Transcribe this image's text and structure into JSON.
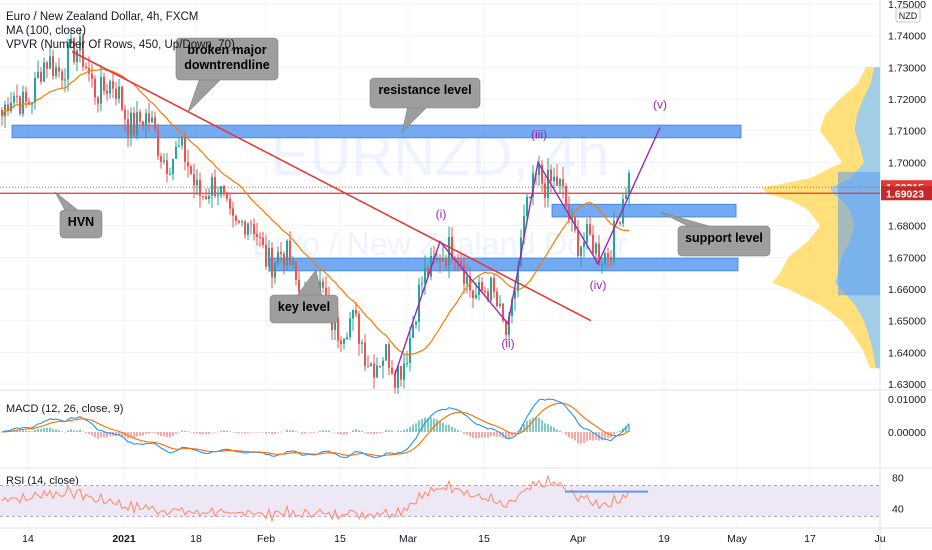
{
  "header": {
    "symbol_line": "Euro / New Zealand Dollar, 4h, FXCM",
    "ma_line": "MA (100, close)",
    "vpvr_line": "VPVR (Number Of Rows, 450, Up/Down, 70)"
  },
  "watermark": {
    "symbol": "EURNZD, 4h",
    "name": "Euro / New Zealand Dollar"
  },
  "currency": "NZD",
  "price_axis": {
    "ticks": [
      "1.75000",
      "1.74000",
      "1.73000",
      "1.72000",
      "1.71000",
      "1.70000",
      "1.69000",
      "1.68000",
      "1.67000",
      "1.66000",
      "1.65000",
      "1.64000",
      "1.63000"
    ],
    "tick_values": [
      1.75,
      1.74,
      1.73,
      1.72,
      1.71,
      1.7,
      1.69,
      1.68,
      1.67,
      1.66,
      1.65,
      1.64,
      1.63
    ],
    "badge_upper": "1.69215",
    "badge_lower": "1.69023",
    "badge_upper_value": 1.69215,
    "badge_lower_value": 1.69023
  },
  "time_axis": [
    "14",
    "2021",
    "18",
    "Feb",
    "15",
    "Mar",
    "15",
    "Apr",
    "19",
    "May",
    "17",
    "Ju"
  ],
  "annotations": {
    "broken_trendline": [
      "broken major",
      "downtrendline"
    ],
    "resistance": "resistance level",
    "hvn": "HVN",
    "key_level": "key level",
    "support": "support level"
  },
  "waves": [
    "(i)",
    "(ii)",
    "(iii)",
    "(iv)",
    "(v)"
  ],
  "macd": {
    "title": "MACD (12, 26, close, 9)",
    "ticks": [
      "0.01000",
      "0.00000"
    ],
    "tick_values": [
      0.01,
      0.0
    ]
  },
  "rsi": {
    "title": "RSI (14, close)",
    "ticks": [
      "80",
      "40"
    ],
    "tick_values": [
      80,
      40
    ],
    "band": [
      30,
      70
    ]
  },
  "colors": {
    "candle_up": "#26a69a",
    "candle_down": "#ef5350",
    "ma": "#f57c00",
    "trendline": "#e53935",
    "zone": "#5b9bef",
    "wave": "#9c27b0",
    "vpvr_up": "#90caf9",
    "vpvr_down": "#ffd54f",
    "callout": "#9e9e9e",
    "macd_line": "#2196f3",
    "signal_line": "#ff6d00",
    "rsi_line": "#ff8a65",
    "rsi_band": "#ede7f6"
  },
  "chart_data": {
    "type": "candlestick",
    "title": "Euro / New Zealand Dollar, 4h, FXCM",
    "ylim": [
      1.6288,
      1.7538
    ],
    "key_points": [
      {
        "label": "start",
        "price": 1.714
      },
      {
        "label": "Jan high",
        "price": 1.735
      },
      {
        "label": "late-Feb low",
        "price": 1.633
      },
      {
        "label": "(i)",
        "price": 1.675
      },
      {
        "label": "(ii)",
        "price": 1.649
      },
      {
        "label": "(iii)",
        "price": 1.7
      },
      {
        "label": "(iv)",
        "price": 1.668
      },
      {
        "label": "last",
        "price": 1.692
      },
      {
        "label": "(v) projected",
        "price": 1.711
      }
    ],
    "zones": [
      {
        "label": "resistance level",
        "top": 1.7105,
        "bottom": 1.709
      },
      {
        "label": "support level",
        "top": 1.6855,
        "bottom": 1.684
      },
      {
        "label": "key level",
        "top": 1.6685,
        "bottom": 1.667
      }
    ],
    "last_price": 1.69215,
    "previous_close": 1.69023
  }
}
